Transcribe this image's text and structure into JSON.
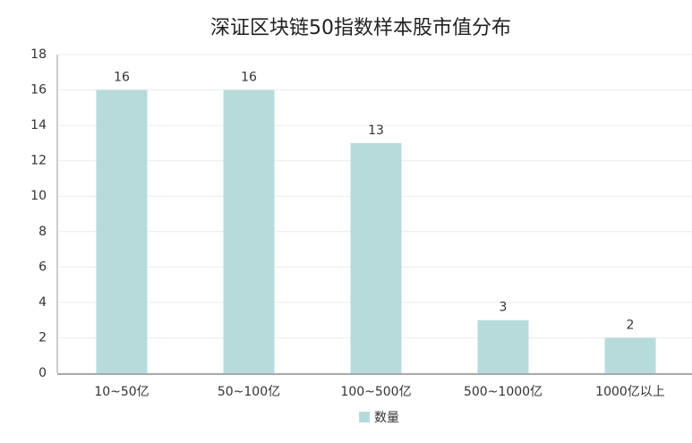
{
  "chart_data": {
    "type": "bar",
    "title": "深证区块链50指数样本股市值分布",
    "categories": [
      "10~50亿",
      "50~100亿",
      "100~500亿",
      "500~1000亿",
      "1000亿以上"
    ],
    "series": [
      {
        "name": "数量",
        "color": "#b7dbdb",
        "values": [
          16,
          16,
          13,
          3,
          2
        ]
      }
    ],
    "ylim": [
      0,
      18
    ],
    "yticks": [
      0,
      2,
      4,
      6,
      8,
      10,
      12,
      14,
      16,
      18
    ],
    "grid": true
  }
}
